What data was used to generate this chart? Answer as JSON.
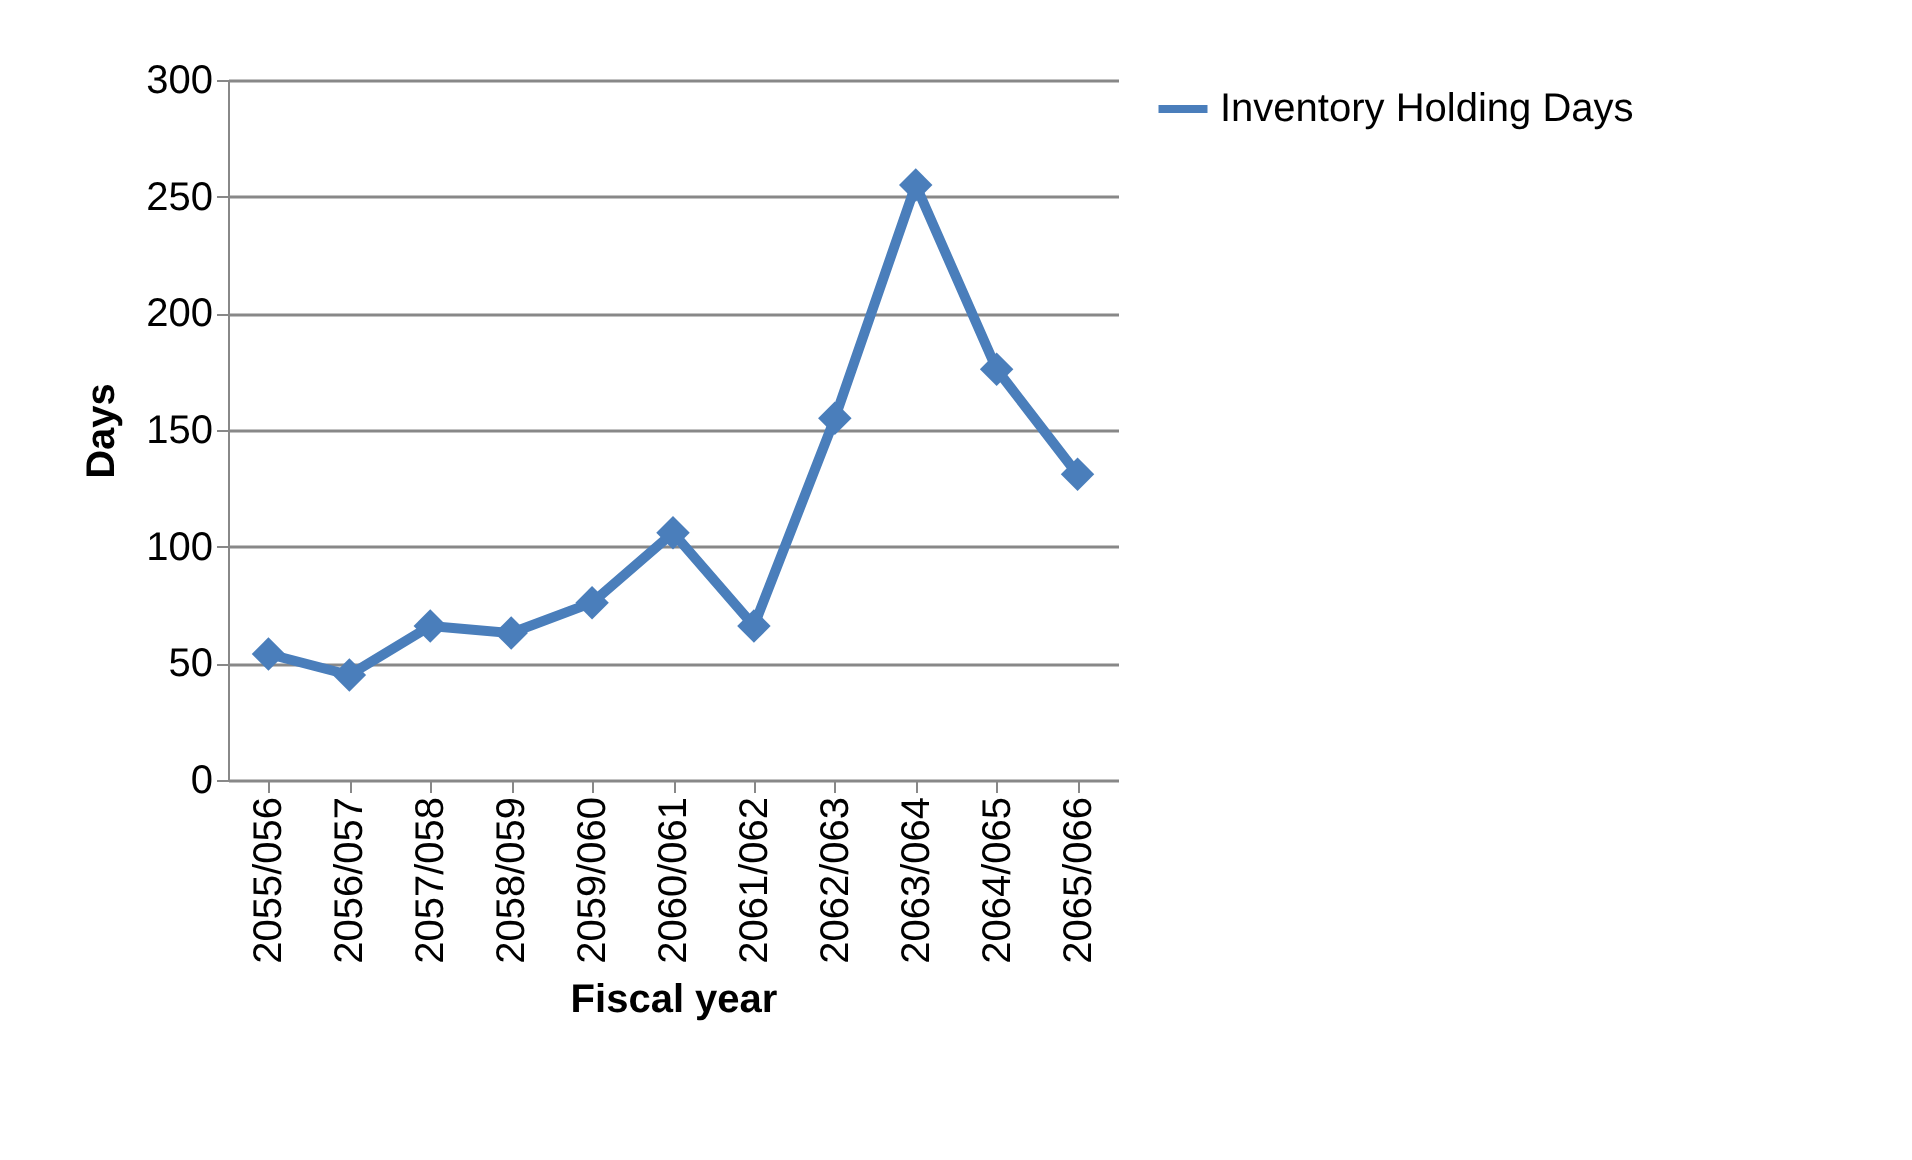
{
  "chart_data": {
    "type": "line",
    "xlabel": "Fiscal year",
    "ylabel": "Days",
    "categories": [
      "2055/056",
      "2056/057",
      "2057/058",
      "2058/059",
      "2059/060",
      "2060/061",
      "2061/062",
      "2062/063",
      "2063/064",
      "2064/065",
      "2065/066"
    ],
    "series": [
      {
        "name": "Inventory Holding Days",
        "color": "#4a7ebb",
        "values": [
          54,
          45,
          66,
          63,
          76,
          106,
          66,
          155,
          255,
          176,
          131
        ]
      }
    ],
    "ylim": [
      0,
      300
    ],
    "yticks": [
      0,
      50,
      100,
      150,
      200,
      250,
      300
    ],
    "grid": "y",
    "legend": "right",
    "marker": "diamond",
    "line_style": "solid"
  }
}
